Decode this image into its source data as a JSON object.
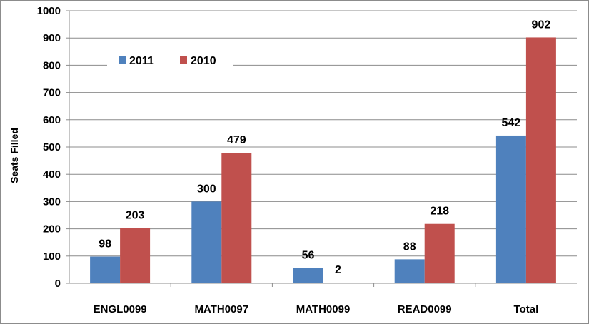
{
  "chart_data": {
    "type": "bar",
    "title": "",
    "xlabel": "",
    "ylabel": "Seats Filled",
    "categories": [
      "ENGL0099",
      "MATH0097",
      "MATH0099",
      "READ0099",
      "Total"
    ],
    "series": [
      {
        "name": "2011",
        "color": "#4f81bd",
        "values": [
          98,
          300,
          56,
          88,
          542
        ]
      },
      {
        "name": "2010",
        "color": "#c0504d",
        "values": [
          203,
          479,
          2,
          218,
          902
        ]
      }
    ],
    "ylim": [
      0,
      1000
    ],
    "ytick_step": 100,
    "y_ticks": [
      "0",
      "100",
      "200",
      "300",
      "400",
      "500",
      "600",
      "700",
      "800",
      "900",
      "1000"
    ],
    "grid": true,
    "legend_position": "top-left"
  }
}
